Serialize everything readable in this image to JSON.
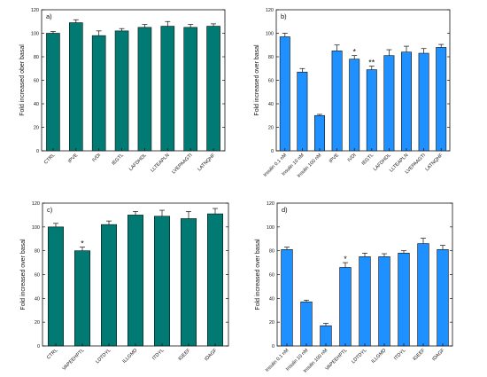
{
  "colors": {
    "teal": "#007A72",
    "blue": "#1E90FF",
    "axis": "#111111"
  },
  "chart_data": [
    {
      "panel": "a)",
      "type": "bar",
      "color": "teal",
      "ylabel": "Fold increased ober basal",
      "ylim": [
        0,
        120
      ],
      "yticks": [
        0,
        20,
        40,
        60,
        80,
        100,
        120
      ],
      "grid": false,
      "categories": [
        "CTRL",
        "IPVE",
        "IVDI",
        "IEGTL",
        "LAFDHDL",
        "LLTEAPLN",
        "LVEPAAGTI",
        "LATNQHF"
      ],
      "values": [
        100,
        109,
        98,
        102,
        105,
        106,
        105,
        106
      ],
      "errors": [
        1.5,
        2.5,
        4,
        2,
        2.5,
        4,
        2.5,
        2
      ],
      "stars": [
        "",
        "",
        "",
        "",
        "",
        "",
        "",
        ""
      ]
    },
    {
      "panel": "b)",
      "type": "bar",
      "color": "blue",
      "ylabel": "Fold increased over basal",
      "ylim": [
        0,
        120
      ],
      "yticks": [
        0,
        20,
        40,
        60,
        80,
        100,
        120
      ],
      "grid": false,
      "categories": [
        "Insulin 0.1 nM",
        "Insulin 10 nM",
        "Insulin 100 nM",
        "IPVE",
        "IVDI",
        "IEGTL",
        "LAFDHDL",
        "LLTEAPLN",
        "LVEPAAGTI",
        "LATNQHF"
      ],
      "values": [
        97,
        67,
        30,
        85,
        78,
        69,
        81,
        84,
        83,
        88
      ],
      "errors": [
        3,
        3,
        1,
        5,
        3,
        3,
        5,
        5,
        4,
        2.5
      ],
      "stars": [
        "",
        "",
        "",
        "",
        "*",
        "**",
        "",
        "",
        "",
        ""
      ]
    },
    {
      "panel": "c)",
      "type": "bar",
      "color": "teal",
      "ylabel": "Fold increased over basal",
      "ylim": [
        0,
        120
      ],
      "yticks": [
        0,
        20,
        40,
        60,
        80,
        100,
        120
      ],
      "grid": false,
      "categories": [
        "CTRL",
        "VAPEEHPTL",
        "LDTDYL",
        "ILLGMD",
        "ITDYL",
        "IGEEF",
        "IDAGF"
      ],
      "values": [
        100,
        80,
        102,
        110,
        109,
        107,
        111
      ],
      "errors": [
        3,
        3,
        3,
        3,
        5,
        6,
        4.5
      ],
      "stars": [
        "",
        "*",
        "",
        "",
        "",
        "",
        ""
      ]
    },
    {
      "panel": "d)",
      "type": "bar",
      "color": "blue",
      "ylabel": "Fold increased over basal",
      "ylim": [
        0,
        120
      ],
      "yticks": [
        0,
        20,
        40,
        60,
        80,
        100,
        120
      ],
      "grid": false,
      "categories": [
        "Insulin 0.1 nM",
        "Insulin 10 nM",
        "Insulin 100 nM",
        "VAPEEHPTL",
        "LDTDYL",
        "ILLGMD",
        "ITDYL",
        "IGEEF",
        "IDAGF"
      ],
      "values": [
        81,
        37,
        17,
        66,
        75,
        75,
        78,
        86,
        81
      ],
      "errors": [
        2,
        1.5,
        2,
        4,
        3,
        2.5,
        2,
        4.5,
        3.5
      ],
      "stars": [
        "",
        "",
        "",
        "*",
        "",
        "",
        "",
        "",
        ""
      ]
    }
  ]
}
